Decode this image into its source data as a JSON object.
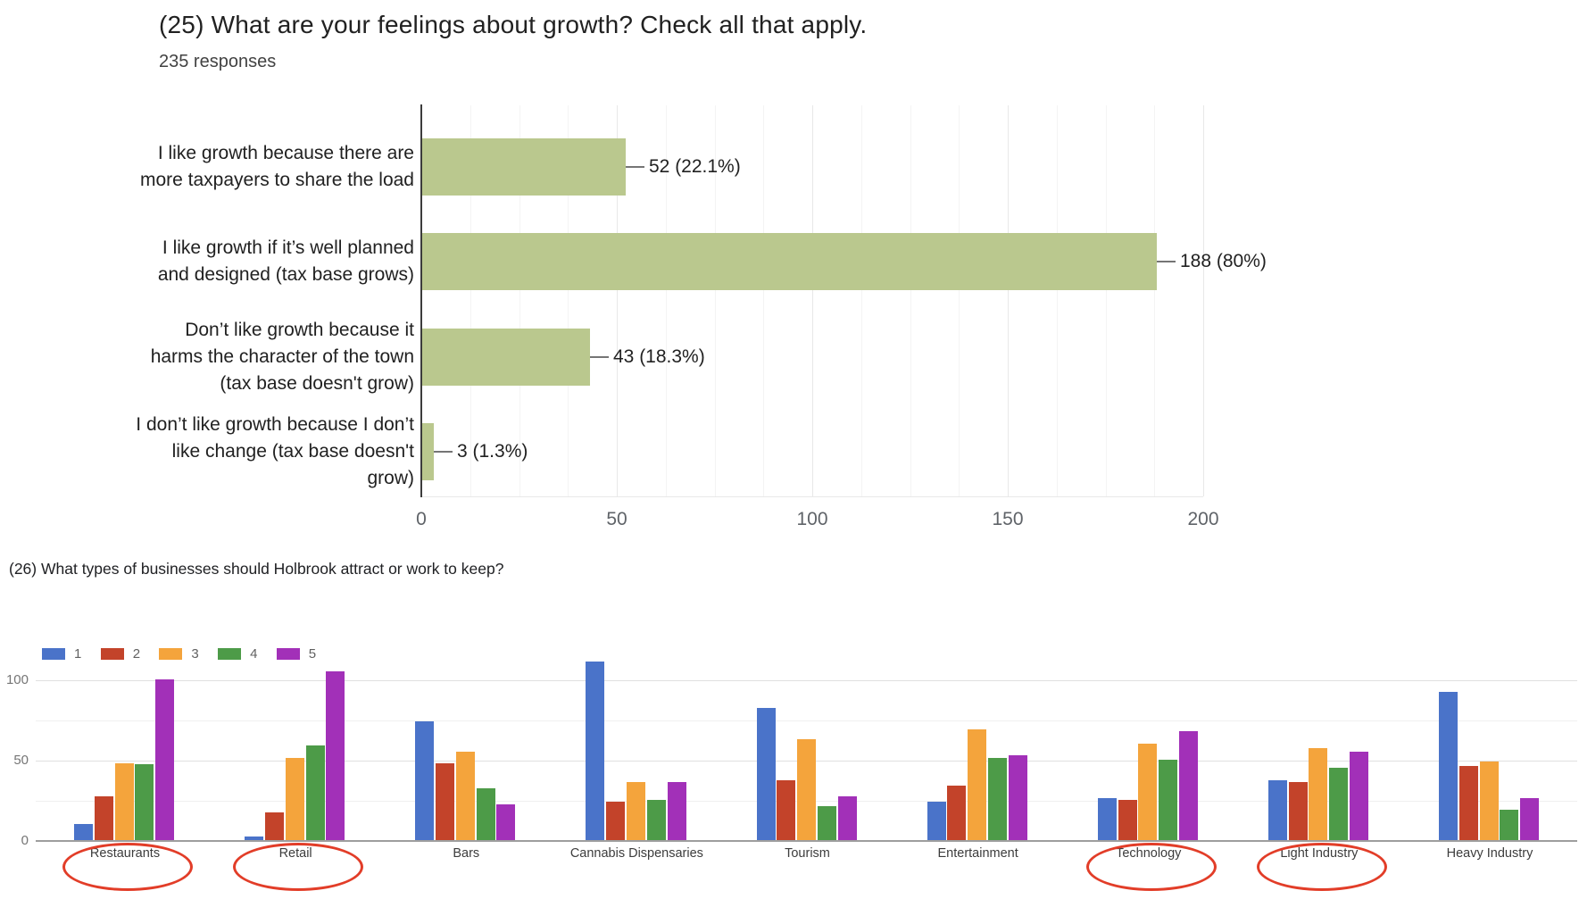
{
  "chart_data": [
    {
      "type": "bar",
      "orientation": "horizontal",
      "title": "(25) What are your feelings about growth? Check all that apply.",
      "subtitle": "235 responses",
      "categories": [
        "I like growth because there are more taxpayers to share the load",
        "I like growth if it’s well planned and designed (tax base grows)",
        "Don’t like growth because it harms the character of the town (tax base doesn't grow)",
        "I don’t like growth because I don’t like change (tax base doesn't grow)"
      ],
      "category_lines": [
        [
          "I like growth because there are",
          "more taxpayers to share the load"
        ],
        [
          "I like growth if it’s well planned",
          "and designed (tax base grows)"
        ],
        [
          "Don’t like growth because it",
          "harms the character of the town",
          "(tax base doesn't grow)"
        ],
        [
          "I don’t like growth because I don’t",
          "like change (tax base doesn't",
          "grow)"
        ]
      ],
      "values": [
        52,
        188,
        43,
        3
      ],
      "value_labels": [
        "52 (22.1%)",
        "188 (80%)",
        "43 (18.3%)",
        "3 (1.3%)"
      ],
      "xlim": [
        0,
        200
      ],
      "xticks": [
        "0",
        "50",
        "100",
        "150",
        "200"
      ],
      "bar_color": "#bac88e",
      "axis_color": "#3c3c3c",
      "grid_major_color": "#e8e8e8",
      "grid_minor_color": "#f4f4f4",
      "leader_color": "#757575",
      "legend_position": "none",
      "grid": true
    },
    {
      "type": "bar",
      "orientation": "vertical",
      "grouped": true,
      "title": "(26) What types of businesses should Holbrook attract or work to keep?",
      "categories": [
        "Restaurants",
        "Retail",
        "Bars",
        "Cannabis Dispensaries",
        "Tourism",
        "Entertainment",
        "Technology",
        "Light Industry",
        "Heavy Industry"
      ],
      "series": [
        {
          "name": "1",
          "color": "#4a73c9",
          "values": [
            10,
            2,
            74,
            111,
            82,
            24,
            26,
            37,
            92
          ]
        },
        {
          "name": "2",
          "color": "#c3432a",
          "values": [
            27,
            17,
            48,
            24,
            37,
            34,
            25,
            36,
            46
          ]
        },
        {
          "name": "3",
          "color": "#f4a43c",
          "values": [
            48,
            51,
            55,
            36,
            63,
            69,
            60,
            57,
            49
          ]
        },
        {
          "name": "4",
          "color": "#4d9b48",
          "values": [
            47,
            59,
            32,
            25,
            21,
            51,
            50,
            45,
            19
          ]
        },
        {
          "name": "5",
          "color": "#a230b8",
          "values": [
            100,
            105,
            22,
            36,
            27,
            53,
            68,
            55,
            26
          ]
        }
      ],
      "ylim": [
        0,
        112
      ],
      "yticks": [
        "0",
        "50",
        "100"
      ],
      "legend_position": "top-left",
      "legend_entries": [
        "1",
        "2",
        "3",
        "4",
        "5"
      ],
      "baseline_color": "#9e9e9e",
      "grid_major_color": "#e0e0e0",
      "grid_minor_color": "#f0f0f0",
      "grid": true,
      "annotations": {
        "circled_categories": [
          "Restaurants",
          "Retail",
          "Technology",
          "Light Industry"
        ],
        "circle_color": "#e23d28"
      }
    }
  ]
}
